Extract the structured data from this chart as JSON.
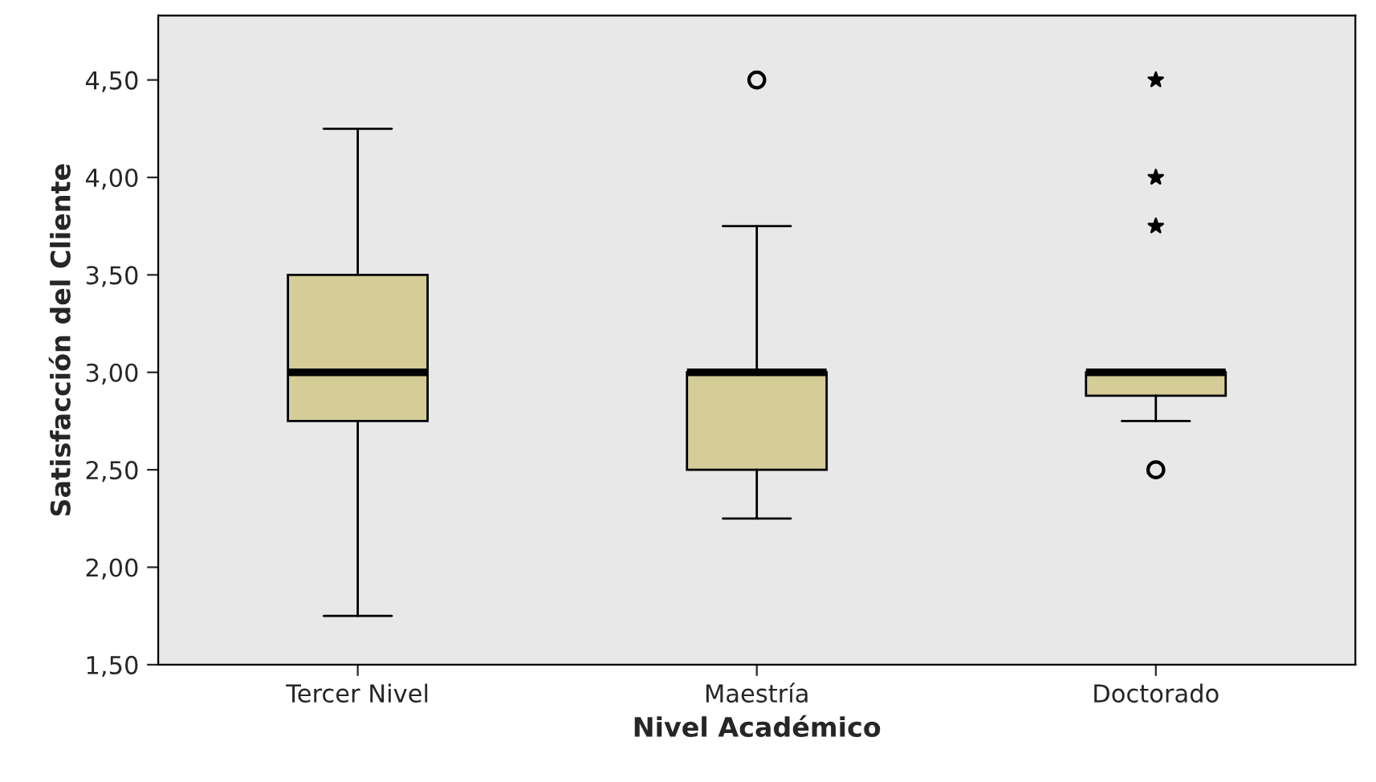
{
  "chart_data": {
    "type": "box",
    "xlabel": "Nivel Académico",
    "ylabel": "Satisfacción del Cliente",
    "categories": [
      "Tercer Nivel",
      "Maestría",
      "Doctorado"
    ],
    "color": "#d4cd98",
    "boxes": [
      {
        "low": 1.75,
        "q1": 2.75,
        "median": 3.0,
        "q3": 3.5,
        "high": 4.25
      },
      {
        "low": 2.25,
        "q1": 2.5,
        "median": 3.0,
        "q3": 3.0,
        "high": 3.75,
        "outliers": [
          4.5
        ]
      },
      {
        "low": 2.75,
        "q1": 2.88,
        "median": 3.0,
        "q3": 3.0,
        "high": 3.0,
        "outliers": [
          2.5
        ]
      }
    ],
    "series": [
      {
        "type": "scatter",
        "marker": "star",
        "color": "#000000",
        "x": [
          "Doctorado",
          "Doctorado",
          "Doctorado"
        ],
        "values": [
          3.75,
          4.0,
          4.5
        ]
      }
    ],
    "ylim": [
      1.5,
      4.83
    ],
    "yticks": [
      {
        "value": 1.5,
        "label": "1,50"
      },
      {
        "value": 2.0,
        "label": "2,00"
      },
      {
        "value": 2.5,
        "label": "2,50"
      },
      {
        "value": 3.0,
        "label": "3,00"
      },
      {
        "value": 3.5,
        "label": "3,50"
      },
      {
        "value": 4.0,
        "label": "4,00"
      },
      {
        "value": 4.5,
        "label": "4,50"
      }
    ],
    "grid": false,
    "legend": false
  }
}
